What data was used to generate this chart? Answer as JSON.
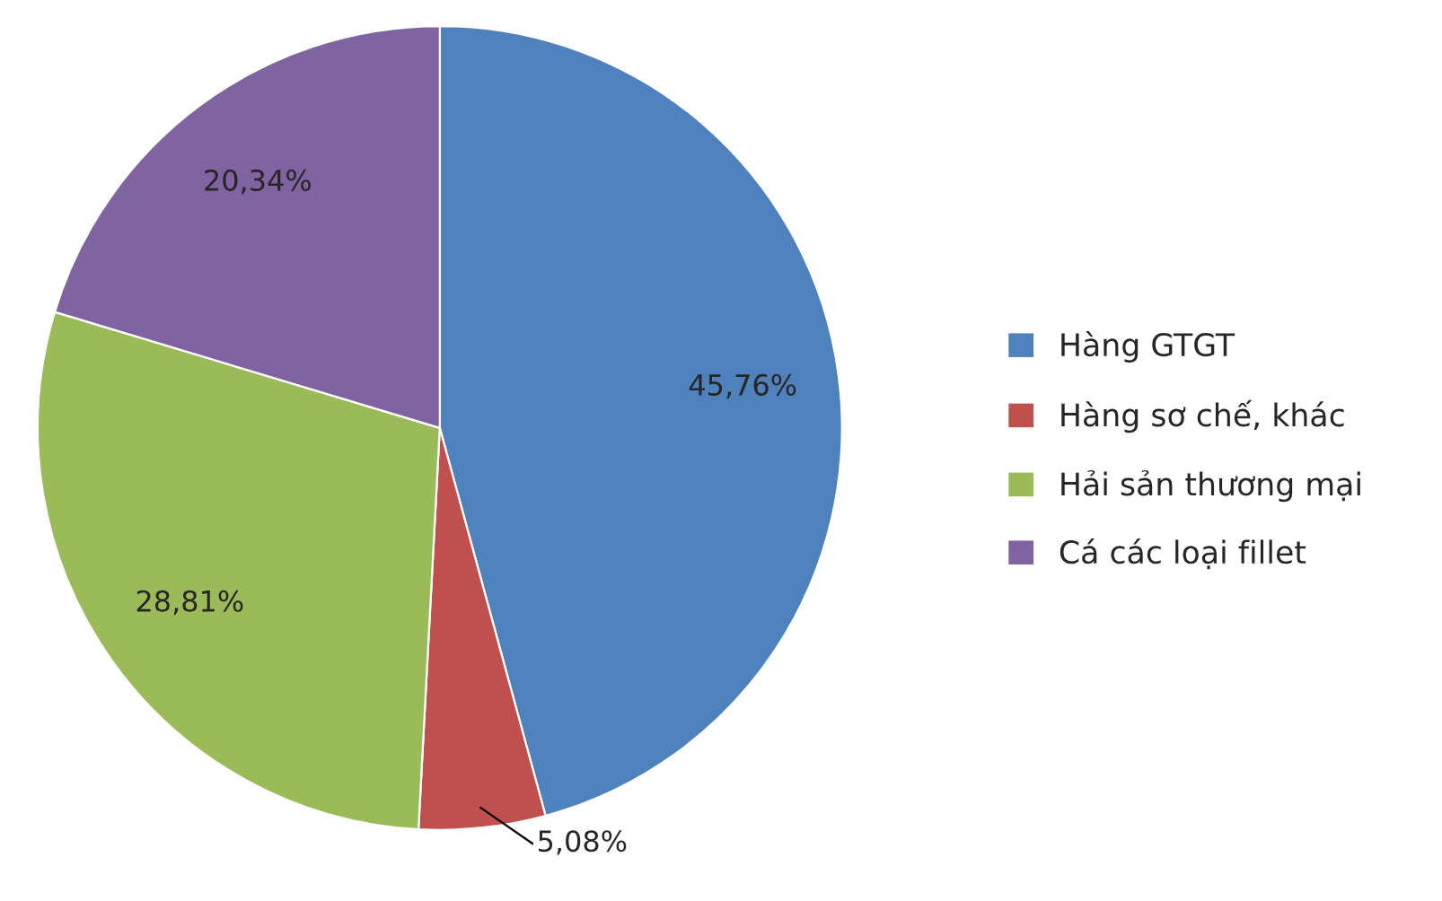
{
  "chart_data": {
    "type": "pie",
    "categories": [
      "Hàng GTGT",
      "Hàng sơ chế, khác",
      "Hải sản thương mại",
      "Cá các loại fillet"
    ],
    "values": [
      45.76,
      5.08,
      28.81,
      20.34
    ],
    "value_labels": [
      "45,76%",
      "5,08%",
      "28,81%",
      "20,34%"
    ],
    "colors": [
      "#4f81bd",
      "#c0504d",
      "#9bbb59",
      "#8064a2"
    ],
    "legend": "right"
  }
}
